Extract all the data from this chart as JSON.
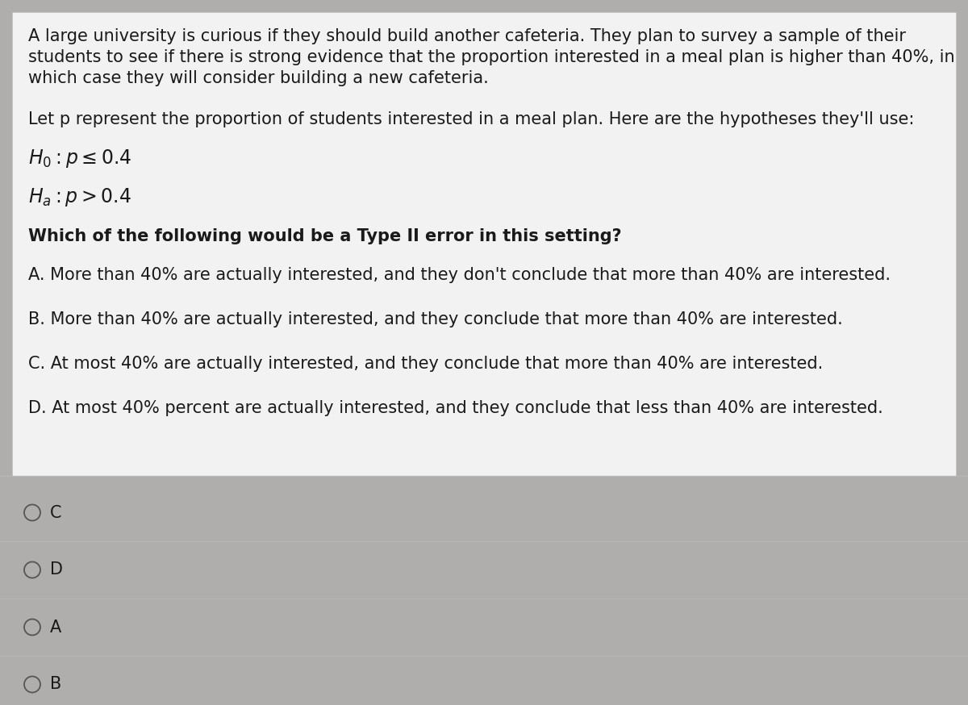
{
  "bg_color": "#b0aeac",
  "content_bg": "#f2f2f2",
  "answer_bg": "#d8d6d4",
  "text_color": "#1a1a1a",
  "line_color": "#b8b6b4",
  "circle_color": "#555555",
  "paragraph1_lines": [
    "A large university is curious if they should build another cafeteria. They plan to survey a sample of their",
    "students to see if there is strong evidence that the proportion interested in a meal plan is higher than 40%, in",
    "which case they will consider building a new cafeteria."
  ],
  "paragraph2": "Let p represent the proportion of students interested in a meal plan. Here are the hypotheses they'll use:",
  "h0": "$H_0 : p \\leq 0.4$",
  "ha": "$H_a : p > 0.4$",
  "question": "Which of the following would be a Type II error in this setting?",
  "optionA": "A. More than 40% are actually interested, and they don't conclude that more than 40% are interested.",
  "optionB": "B. More than 40% are actually interested, and they conclude that more than 40% are interested.",
  "optionC": "C. At most 40% are actually interested, and they conclude that more than 40% are interested.",
  "optionD": "D. At most 40% percent are actually interested, and they conclude that less than 40% are interested.",
  "answers": [
    "C",
    "D",
    "A",
    "B"
  ],
  "font_size_body": 15,
  "font_size_hypothesis": 17,
  "font_size_question": 15
}
